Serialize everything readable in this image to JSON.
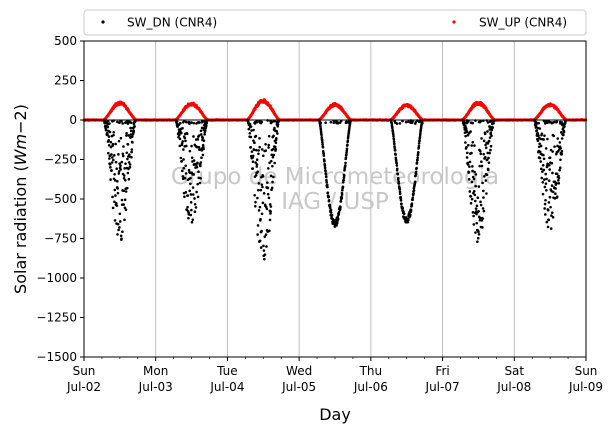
{
  "chart_data": {
    "type": "scatter",
    "title": "",
    "xlabel": "Day",
    "ylabel": "Solar radiation ($Wm{-}2$)",
    "ylabel_parts": {
      "text": "Solar radiation (",
      "math_W": "Wm",
      "math_minus": "−2",
      "close": ")"
    },
    "ylim": [
      -1500,
      500
    ],
    "yticks": [
      -1500,
      -1250,
      -1000,
      -750,
      -500,
      -250,
      0,
      250,
      500
    ],
    "xlim": [
      "2017-07-02",
      "2017-07-09"
    ],
    "xticks": [
      {
        "date": "Jul-02",
        "day": "Sun"
      },
      {
        "date": "Jul-03",
        "day": "Mon"
      },
      {
        "date": "Jul-04",
        "day": "Tue"
      },
      {
        "date": "Jul-05",
        "day": "Wed"
      },
      {
        "date": "Jul-06",
        "day": "Thu"
      },
      {
        "date": "Jul-07",
        "day": "Fri"
      },
      {
        "date": "Jul-08",
        "day": "Sat"
      },
      {
        "date": "Jul-09",
        "day": "Sun"
      }
    ],
    "grid": "vertical",
    "zero_line": true,
    "legend_placement": "above-top",
    "series": [
      {
        "name": "SW_DN (CNR4)",
        "color": "#000000",
        "daily_minimum": [
          -780,
          -700,
          -910,
          -680,
          -660,
          -790,
          -710
        ],
        "daily_shape": "noisy"
      },
      {
        "name": "SW_UP (CNR4)",
        "color": "#ff0000",
        "daily_maximum": [
          110,
          105,
          125,
          100,
          95,
          110,
          100
        ],
        "daily_shape": "bell"
      }
    ],
    "watermark": [
      "Grupo de Micrometeorologia",
      "IAG / USP"
    ]
  }
}
